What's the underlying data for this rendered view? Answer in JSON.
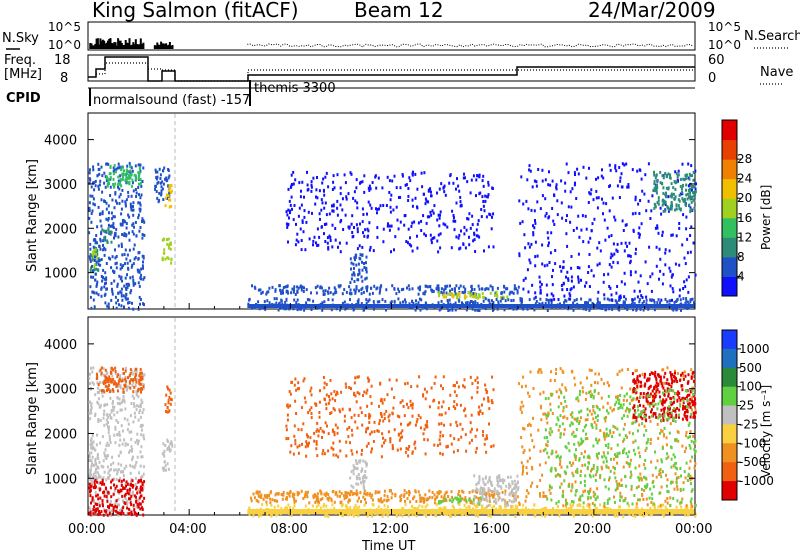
{
  "header": {
    "station": "King Salmon (fitACF)",
    "beam": "Beam 12",
    "date": "24/Mar/2009"
  },
  "strip_labels": {
    "nsky": "N.Sky",
    "freq_line1": "Freq.",
    "freq_line2": "[MHz]",
    "cpid": "CPID",
    "nsearch": "N.Search",
    "nave": "Nave"
  },
  "strip_ticks": {
    "nsky_top": "10^5",
    "nsky_bottom": "10^0",
    "nsearch_top": "10^5",
    "nsearch_bottom": "10^0",
    "freq_top": "18",
    "freq_bottom": "8",
    "nave_top": "60",
    "nave_bottom": "0"
  },
  "cpid_labels": {
    "first": "normalsound (fast) -157",
    "second": "themis 3300"
  },
  "axes": {
    "ylabel_top": "Slant Range [km]",
    "ylabel_bottom": "Slant Range [km]",
    "xlabel": "Time UT",
    "y_ticks": [
      "1000",
      "2000",
      "3000",
      "4000"
    ],
    "x_ticks": [
      "00:00",
      "04:00",
      "08:00",
      "12:00",
      "16:00",
      "20:00",
      "00:00"
    ]
  },
  "colorbars": {
    "power": {
      "label": "Power [dB]",
      "ticks": [
        "4",
        "8",
        "12",
        "16",
        "20",
        "24",
        "28"
      ],
      "colors": [
        "#1010ff",
        "#2050c8",
        "#2c8c78",
        "#30c060",
        "#a0d020",
        "#f0c000",
        "#f08000",
        "#e84000",
        "#e00000"
      ]
    },
    "velocity": {
      "label": "Velocity [m s⁻¹]",
      "ticks": [
        "1000",
        "500",
        "100",
        "25",
        "-25",
        "-100",
        "-500",
        "-1000"
      ],
      "colors": [
        "#1a3cff",
        "#2070c0",
        "#2a8a3a",
        "#60d040",
        "#c0c0c0",
        "#f8d040",
        "#f09020",
        "#f06010",
        "#e00000"
      ]
    }
  },
  "chart_data": [
    {
      "type": "scatter",
      "name": "power",
      "x_unit": "hours UT",
      "ylabel": "Slant Range [km]",
      "xlim": [
        0,
        24
      ],
      "ylim": [
        180,
        4600
      ],
      "clusters": [
        {
          "x0": 0.0,
          "x1": 0.4,
          "y0": 1000,
          "y1": 1650,
          "color": "#2c8c78"
        },
        {
          "x0": 0.1,
          "x1": 0.35,
          "y0": 1150,
          "y1": 1550,
          "color": "#a0d020"
        },
        {
          "x0": 0.0,
          "x1": 2.2,
          "y0": 200,
          "y1": 3500,
          "color": "#2050c8"
        },
        {
          "x0": 0.7,
          "x1": 2.1,
          "y0": 2950,
          "y1": 3450,
          "color": "#30c060"
        },
        {
          "x0": 0.5,
          "x1": 0.9,
          "y0": 1700,
          "y1": 2050,
          "color": "#2c8c78"
        },
        {
          "x0": 2.6,
          "x1": 3.2,
          "y0": 2600,
          "y1": 3400,
          "color": "#2050c8"
        },
        {
          "x0": 3.0,
          "x1": 3.3,
          "y0": 2500,
          "y1": 3000,
          "color": "#f0c000"
        },
        {
          "x0": 2.9,
          "x1": 3.3,
          "y0": 1200,
          "y1": 1800,
          "color": "#a0d020"
        },
        {
          "x0": 6.4,
          "x1": 17.0,
          "y0": 540,
          "y1": 740,
          "color": "#2050c8"
        },
        {
          "x0": 10.3,
          "x1": 11.0,
          "y0": 800,
          "y1": 1450,
          "color": "#2050c8"
        },
        {
          "x0": 13.8,
          "x1": 16.6,
          "y0": 450,
          "y1": 600,
          "color": "#a0d020"
        },
        {
          "x0": 14.0,
          "x1": 15.2,
          "y0": 470,
          "y1": 560,
          "color": "#f0c000"
        },
        {
          "x0": 6.3,
          "x1": 24.0,
          "y0": 180,
          "y1": 450,
          "color": "#2050c8"
        },
        {
          "x0": 17.0,
          "x1": 24.0,
          "y0": 400,
          "y1": 3500,
          "color": "#1010ff"
        },
        {
          "x0": 7.8,
          "x1": 16.0,
          "y0": 1500,
          "y1": 3300,
          "color": "#1010ff"
        },
        {
          "x0": 22.3,
          "x1": 24.0,
          "y0": 2400,
          "y1": 3300,
          "color": "#2c8c78"
        }
      ]
    },
    {
      "type": "scatter",
      "name": "velocity",
      "x_unit": "hours UT",
      "ylabel": "Slant Range [km]",
      "xlim": [
        0,
        24
      ],
      "ylim": [
        180,
        4600
      ],
      "clusters": [
        {
          "x0": 0.0,
          "x1": 0.4,
          "y0": 1000,
          "y1": 1800,
          "color": "#c0c0c0"
        },
        {
          "x0": 0.0,
          "x1": 2.2,
          "y0": 200,
          "y1": 3500,
          "color": "#c0c0c0"
        },
        {
          "x0": 0.3,
          "x1": 2.2,
          "y0": 2950,
          "y1": 3500,
          "color": "#f06010"
        },
        {
          "x0": 0.0,
          "x1": 2.2,
          "y0": 200,
          "y1": 1000,
          "color": "#e00000"
        },
        {
          "x0": 3.0,
          "x1": 3.3,
          "y0": 2500,
          "y1": 3100,
          "color": "#f06010"
        },
        {
          "x0": 2.9,
          "x1": 3.3,
          "y0": 1200,
          "y1": 1900,
          "color": "#c0c0c0"
        },
        {
          "x0": 6.4,
          "x1": 17.0,
          "y0": 480,
          "y1": 760,
          "color": "#f09020"
        },
        {
          "x0": 10.3,
          "x1": 11.0,
          "y0": 800,
          "y1": 1450,
          "color": "#c0c0c0"
        },
        {
          "x0": 13.8,
          "x1": 15.6,
          "y0": 450,
          "y1": 600,
          "color": "#60d040"
        },
        {
          "x0": 15.2,
          "x1": 17.0,
          "y0": 400,
          "y1": 1100,
          "color": "#c0c0c0"
        },
        {
          "x0": 6.3,
          "x1": 24.0,
          "y0": 180,
          "y1": 450,
          "color": "#f8d040"
        },
        {
          "x0": 17.0,
          "x1": 24.0,
          "y0": 400,
          "y1": 3500,
          "color": "#f09020"
        },
        {
          "x0": 21.5,
          "x1": 24.0,
          "y0": 2300,
          "y1": 3400,
          "color": "#e00000"
        },
        {
          "x0": 7.8,
          "x1": 16.0,
          "y0": 1500,
          "y1": 3300,
          "color": "#f06010"
        },
        {
          "x0": 18.0,
          "x1": 24.0,
          "y0": 400,
          "y1": 3000,
          "color": "#60d040"
        }
      ]
    }
  ]
}
